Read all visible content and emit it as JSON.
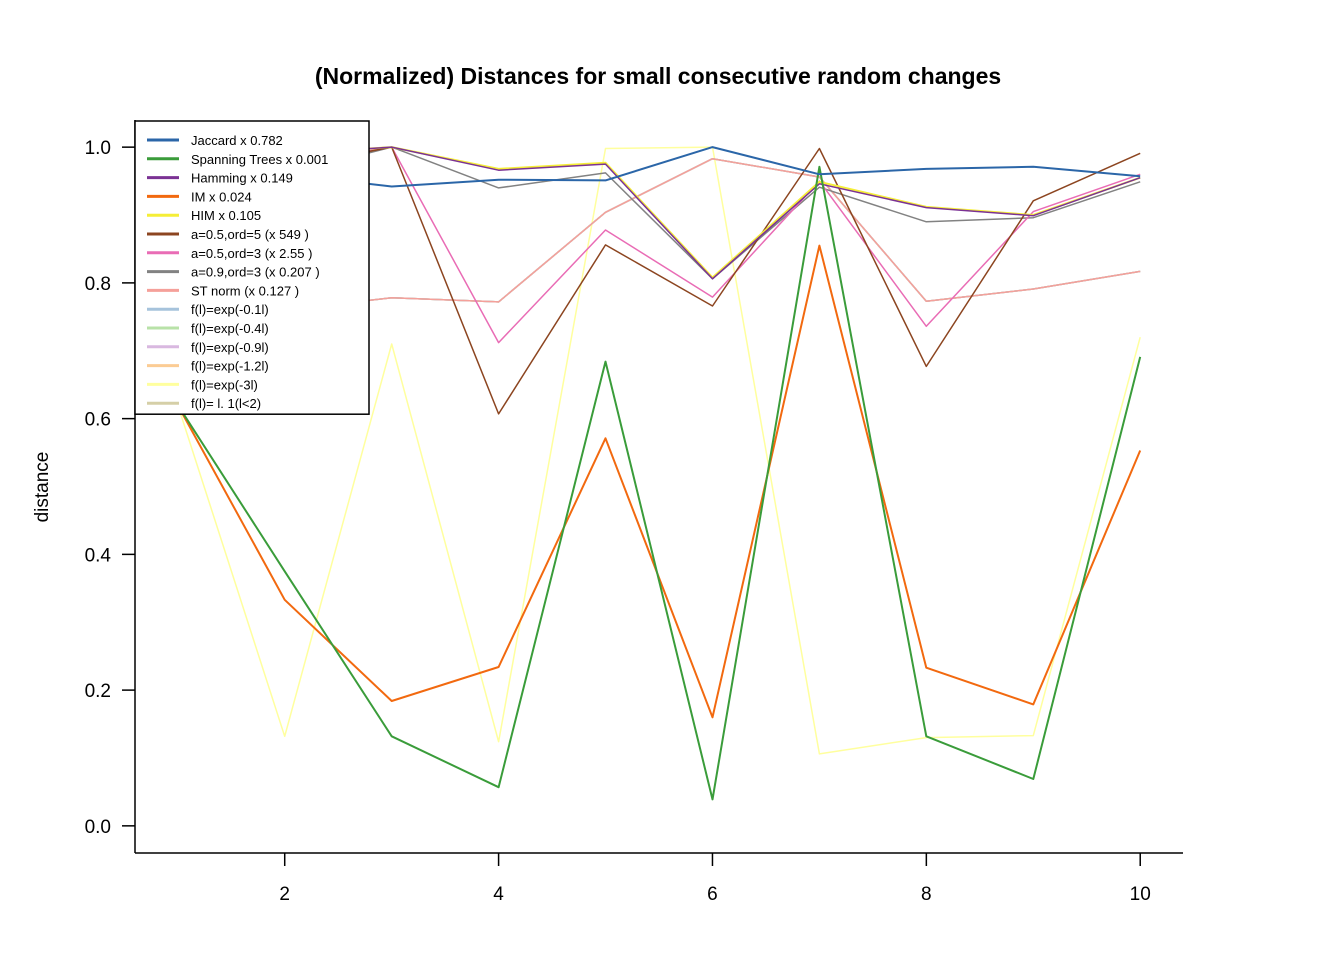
{
  "chart_data": {
    "type": "line",
    "title": "(Normalized) Distances for  small consecutive random changes",
    "ylabel": "distance",
    "xlabel": "",
    "xlim": [
      0.6,
      10.4
    ],
    "ylim": [
      -0.04,
      1.04
    ],
    "x_ticks": [
      2,
      4,
      6,
      8,
      10
    ],
    "y_ticks": [
      0.0,
      0.2,
      0.4,
      0.6,
      0.8,
      1.0
    ],
    "y_tick_labels": [
      "0.0",
      "0.2",
      "0.4",
      "0.6",
      "0.8",
      "1.0"
    ],
    "x": [
      1,
      2,
      3,
      4,
      5,
      6,
      7,
      8,
      9,
      10
    ],
    "legend_position": "top-left",
    "series": [
      {
        "name": "Jaccard  x 0.782",
        "color": "#2b66a8",
        "width": 2,
        "values": [
          null,
          0.96,
          0.942,
          0.952,
          0.951,
          1.0,
          0.96,
          0.968,
          0.971,
          0.957
        ]
      },
      {
        "name": "Spanning Trees  x 0.001",
        "color": "#3a9c3a",
        "width": 2,
        "values": [
          0.62,
          0.375,
          0.132,
          0.057,
          0.684,
          0.039,
          0.971,
          0.132,
          0.069,
          0.691
        ]
      },
      {
        "name": "Hamming x 0.149",
        "color": "#7b3294",
        "width": 1.5,
        "values": [
          null,
          0.99,
          1.0,
          0.966,
          0.975,
          0.806,
          0.946,
          0.911,
          0.899,
          0.955
        ]
      },
      {
        "name": "IM x 0.024",
        "color": "#f2690f",
        "width": 2,
        "values": [
          0.62,
          0.333,
          0.184,
          0.234,
          0.571,
          0.16,
          0.855,
          0.233,
          0.179,
          0.553
        ]
      },
      {
        "name": "HIM  x 0.105",
        "color": "#f5ee37",
        "width": 2,
        "values": [
          null,
          0.99,
          1.0,
          0.968,
          0.977,
          0.808,
          0.949,
          0.912,
          0.9,
          0.955
        ]
      },
      {
        "name": "a=0.5,ord=5  (x 549 )",
        "color": "#8c4520",
        "width": 1.5,
        "values": [
          null,
          0.97,
          1.0,
          0.607,
          0.856,
          0.766,
          0.998,
          0.677,
          0.921,
          0.991
        ]
      },
      {
        "name": "a=0.5,ord=3  (x 2.55 )",
        "color": "#e96cb5",
        "width": 1.5,
        "values": [
          null,
          0.975,
          1.0,
          0.712,
          0.878,
          0.779,
          0.95,
          0.736,
          0.905,
          0.96
        ]
      },
      {
        "name": "a=0.9,ord=3  (x 0.207 )",
        "color": "#828282",
        "width": 1.5,
        "values": [
          null,
          0.96,
          1.0,
          0.94,
          0.962,
          0.806,
          0.941,
          0.89,
          0.896,
          0.949
        ]
      },
      {
        "name": "ST norm  (x 0.127 )",
        "color": "#f5a09a",
        "width": 1.5,
        "values": [
          null,
          0.76,
          0.778,
          0.772,
          0.904,
          0.983,
          0.956,
          0.773,
          0.791,
          0.817
        ]
      },
      {
        "name": "f(l)=exp(-0.1l)",
        "color": "#a6c3dc",
        "width": 1.5,
        "values": [
          null,
          0.76,
          0.778,
          0.772,
          0.904,
          0.983,
          0.956,
          0.773,
          0.791,
          0.817
        ]
      },
      {
        "name": "f(l)=exp(-0.4l)",
        "color": "#b8e2a8",
        "width": 1.5,
        "values": [
          null,
          0.76,
          0.778,
          0.772,
          0.904,
          0.983,
          0.956,
          0.773,
          0.791,
          0.817
        ]
      },
      {
        "name": "f(l)=exp(-0.9l)",
        "color": "#d9b8e0",
        "width": 1.5,
        "values": [
          null,
          0.76,
          0.778,
          0.772,
          0.904,
          0.983,
          0.956,
          0.773,
          0.791,
          0.817
        ]
      },
      {
        "name": "f(l)=exp(-1.2l)",
        "color": "#fbcc94",
        "width": 1.5,
        "values": [
          null,
          0.76,
          0.778,
          0.772,
          0.904,
          0.983,
          0.956,
          0.773,
          0.791,
          0.817
        ]
      },
      {
        "name": "f(l)=exp(-3l)",
        "color": "#ffff9e",
        "width": 1.5,
        "values": [
          0.62,
          0.132,
          0.71,
          0.124,
          0.998,
          1.0,
          0.106,
          0.13,
          0.133,
          0.72
        ]
      },
      {
        "name": "f(l)= l. 1(l<2)",
        "color": "#d5cfa7",
        "width": 1.5,
        "values": [
          null,
          0.76,
          0.778,
          0.772,
          0.904,
          0.983,
          0.956,
          0.773,
          0.791,
          0.817
        ]
      }
    ]
  }
}
